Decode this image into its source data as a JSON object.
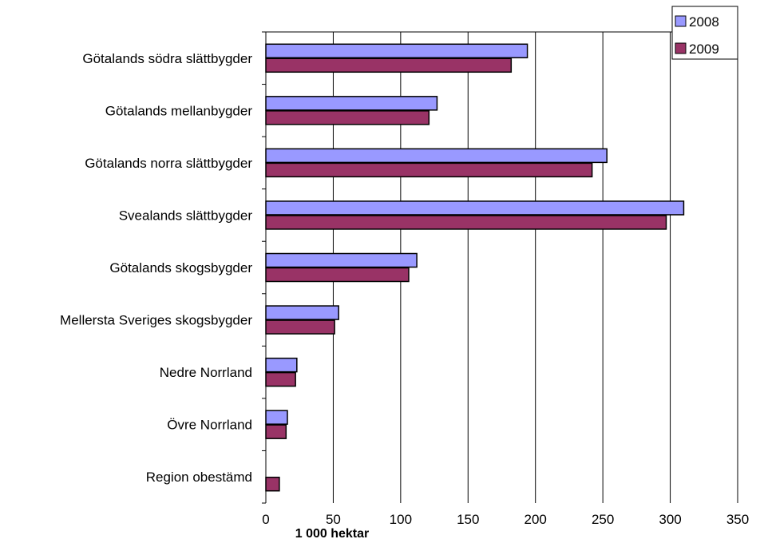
{
  "chart_data": {
    "type": "bar",
    "orientation": "horizontal",
    "title": "",
    "xlabel": "1 000 hektar",
    "ylabel": "",
    "xlim": [
      0,
      350
    ],
    "xticks": [
      0,
      50,
      100,
      150,
      200,
      250,
      300,
      350
    ],
    "grid": "vertical",
    "legend_position": "top-right",
    "categories": [
      "Götalands södra slättbygder",
      "Götalands mellanbygder",
      "Götalands norra slättbygder",
      "Svealands slättbygder",
      "Götalands skogsbygder",
      "Mellersta Sveriges skogsbygder",
      "Nedre Norrland",
      "Övre Norrland",
      "Region obestämd"
    ],
    "series": [
      {
        "name": "2008",
        "color": "#9999ff",
        "values": [
          194,
          127,
          253,
          310,
          112,
          54,
          23,
          16,
          0
        ]
      },
      {
        "name": "2009",
        "color": "#993366",
        "values": [
          182,
          121,
          242,
          297,
          106,
          51,
          22,
          15,
          10
        ]
      }
    ]
  }
}
